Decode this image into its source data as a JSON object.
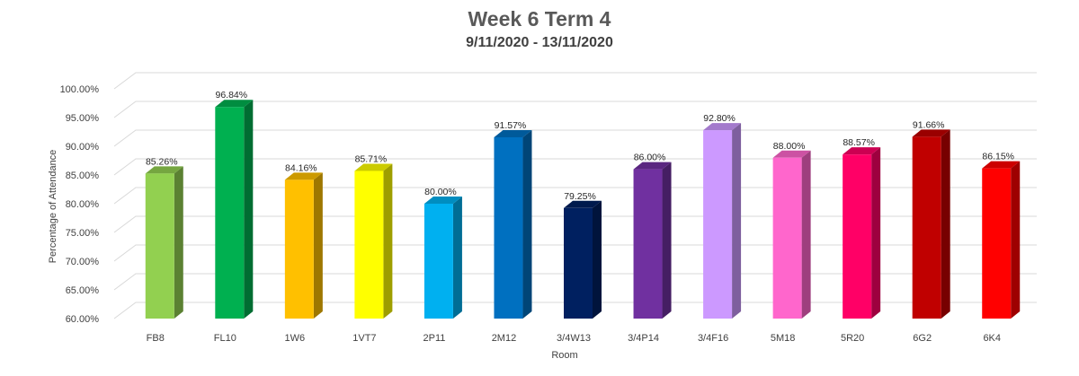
{
  "chart_data": {
    "type": "bar",
    "title": "Week 6 Term 4",
    "subtitle": "9/11/2020 - 13/11/2020",
    "xlabel": "Room",
    "ylabel": "Percentage of Attendance",
    "ylim": [
      60,
      100
    ],
    "ytick_step": 5,
    "grid": true,
    "legend": "none",
    "three_d": true,
    "categories": [
      "FB8",
      "FL10",
      "1W6",
      "1VT7",
      "2P11",
      "2M12",
      "3/4W13",
      "3/4P14",
      "3/4F16",
      "5M18",
      "5R20",
      "6G2",
      "6K4"
    ],
    "values": [
      85.26,
      96.84,
      84.16,
      85.71,
      80.0,
      91.57,
      79.25,
      86.0,
      92.8,
      88.0,
      88.57,
      91.66,
      86.15
    ],
    "value_labels": [
      "85.26%",
      "96.84%",
      "84.16%",
      "85.71%",
      "80.00%",
      "91.57%",
      "79.25%",
      "86.00%",
      "92.80%",
      "88.00%",
      "88.57%",
      "91.66%",
      "86.15%"
    ],
    "colors": [
      "#92d050",
      "#00b050",
      "#ffc000",
      "#ffff00",
      "#00b0f0",
      "#0070c0",
      "#002060",
      "#7030a0",
      "#cc99ff",
      "#ff66cc",
      "#ff0066",
      "#c00000",
      "#ff0000"
    ]
  }
}
